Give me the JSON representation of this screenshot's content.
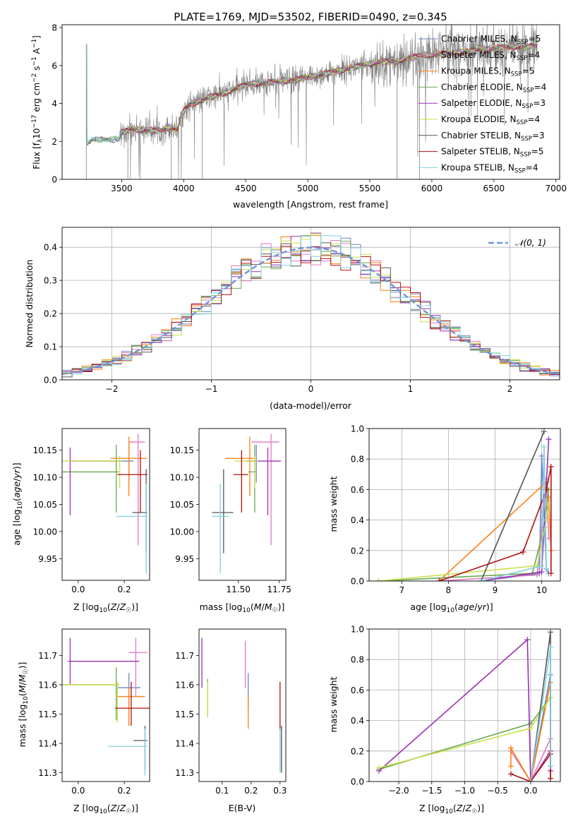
{
  "title": "PLATE=1769, MJD=53502, FIBERID=0490, z=0.345",
  "colors": {
    "Chabrier MILES": "#6f86c6",
    "Salpeter MILES": "#e377c2",
    "Kroupa MILES": "#ff7f0e",
    "Chabrier ELODIE": "#6aa84f",
    "Salpeter ELODIE": "#9b30b5",
    "Kroupa ELODIE": "#c8e04a",
    "Chabrier STELIB": "#555555",
    "Salpeter STELIB": "#b01010",
    "Kroupa STELIB": "#80d0e0",
    "data": "#808080",
    "normal": "#6f95d8"
  },
  "panels": {
    "spectrum": {
      "ylabel": "Flux [f_λ 10^-17 erg cm^-2 s^-1 A^-1]",
      "xlabel": "wavelength [Angstrom, rest frame]",
      "xticks": [
        "3500",
        "4000",
        "4500",
        "5000",
        "5500",
        "6000",
        "6500",
        "7000"
      ],
      "yticks": [
        "0",
        "2",
        "4",
        "6",
        "8"
      ],
      "legend": [
        {
          "label": "Chabrier MILES, N_SSP=5",
          "key": "Chabrier MILES"
        },
        {
          "label": "Salpeter MILES, N_SSP=4",
          "key": "Salpeter MILES"
        },
        {
          "label": "Kroupa MILES, N_SSP=5",
          "key": "Kroupa MILES"
        },
        {
          "label": "Chabrier ELODIE, N_SSP=4",
          "key": "Chabrier ELODIE"
        },
        {
          "label": "Salpeter ELODIE, N_SSP=3",
          "key": "Salpeter ELODIE"
        },
        {
          "label": "Kroupa ELODIE, N_SSP=4",
          "key": "Kroupa ELODIE"
        },
        {
          "label": "Chabrier STELIB, N_SSP=3",
          "key": "Chabrier STELIB"
        },
        {
          "label": "Salpeter STELIB, N_SSP=5",
          "key": "Salpeter STELIB"
        },
        {
          "label": "Kroupa STELIB, N_SSP=4",
          "key": "Kroupa STELIB"
        }
      ]
    },
    "residuals": {
      "ylabel": "Normed distribution",
      "xlabel": "(data-model)/error",
      "xticks": [
        "−2",
        "−1",
        "0",
        "1",
        "2"
      ],
      "yticks": [
        "0.0",
        "0.1",
        "0.2",
        "0.3",
        "0.4"
      ],
      "legend": "𝒩(0, 1)"
    },
    "age_Z": {
      "ylabel": "age  [log10(age/yr)]",
      "xlabel": "Z [log10(Z/Z☉)]",
      "xticks": [
        "0.0",
        "0.2"
      ],
      "yticks": [
        "9.95",
        "10.00",
        "10.05",
        "10.10",
        "10.15"
      ]
    },
    "age_mass": {
      "xlabel": "mass [log10(M/M☉)]",
      "xticks": [
        "11.50",
        "11.75"
      ],
      "yticks": [
        "9.95",
        "10.00",
        "10.05",
        "10.10",
        "10.15"
      ]
    },
    "mw_age": {
      "ylabel": "mass weight",
      "xlabel": "age  [log10(age/yr)]",
      "xticks": [
        "7",
        "8",
        "9",
        "10"
      ],
      "yticks": [
        "0.0",
        "0.2",
        "0.4",
        "0.6",
        "0.8",
        "1.0"
      ]
    },
    "mass_Z": {
      "ylabel": "mass [log10(M/M☉)]",
      "xlabel": "Z [log10(Z/Z☉)]",
      "xticks": [
        "0.0",
        "0.2"
      ],
      "yticks": [
        "11.3",
        "11.4",
        "11.5",
        "11.6",
        "11.7"
      ]
    },
    "mass_ebv": {
      "xlabel": "E(B-V)",
      "xticks": [
        "0.1",
        "0.2",
        "0.3"
      ],
      "yticks": [
        "11.3",
        "11.4",
        "11.5",
        "11.6",
        "11.7"
      ]
    },
    "mw_Z": {
      "ylabel": "mass weight",
      "xlabel": "Z [log10(Z/Z☉)]",
      "xticks": [
        "−2.0",
        "−1.5",
        "−1.0",
        "−0.5",
        "0.0"
      ],
      "yticks": [
        "0.0",
        "0.2",
        "0.4",
        "0.6",
        "0.8",
        "1.0"
      ]
    }
  },
  "chart_data": [
    {
      "type": "line",
      "title": "PLATE=1769, MJD=53502, FIBERID=0490, z=0.345",
      "xlabel": "wavelength [Angstrom, rest frame]",
      "ylabel": "Flux [f_λ 10^-17 erg cm^-2 s^-1 A^-1]",
      "xlim": [
        3020,
        7030
      ],
      "ylim": [
        0,
        8.15
      ],
      "grid": false,
      "legend_position": "top-right",
      "continuum_anchors": {
        "x": [
          3220,
          3270,
          3480,
          3500,
          3600,
          3700,
          3800,
          3900,
          3950,
          3990,
          4050,
          4200,
          4400,
          4500,
          4700,
          4900,
          5100,
          5200,
          5400,
          5600,
          5700,
          5900,
          6100,
          6300,
          6500,
          6700,
          6850
        ],
        "y": [
          1.9,
          2.1,
          2.1,
          2.45,
          2.65,
          2.6,
          2.55,
          2.75,
          2.6,
          3.5,
          3.95,
          4.3,
          4.7,
          5.0,
          5.1,
          5.25,
          5.5,
          5.65,
          5.95,
          6.2,
          6.2,
          6.5,
          6.6,
          6.75,
          6.9,
          7.0,
          7.0
        ]
      }
    },
    {
      "type": "bar",
      "title": "",
      "xlabel": "(data-model)/error",
      "ylabel": "Normed distribution",
      "xlim": [
        -2.5,
        2.5
      ],
      "ylim": [
        0,
        0.46
      ],
      "grid": true,
      "legend_position": "top-right",
      "bin_width": 0.1,
      "series_note": "9 step histograms approximately following N(0,1)",
      "normal": {
        "name": "𝒩(0, 1)",
        "mean": 0,
        "sigma": 1
      }
    },
    {
      "type": "scatter",
      "xlabel": "Z [log10(Z/Z☉)]",
      "ylabel": "age  [log10(age/yr)]",
      "xlim": [
        -0.07,
        0.31
      ],
      "ylim": [
        9.91,
        10.19
      ],
      "points": [
        {
          "key": "Chabrier MILES",
          "x": 0.22,
          "xerr": [
            0.08,
            0.02
          ],
          "y": 10.13,
          "yerr": [
            0.04,
            0.03
          ]
        },
        {
          "key": "Salpeter MILES",
          "x": 0.26,
          "xerr": [
            0.04,
            0.03
          ],
          "y": 10.165,
          "yerr": [
            0.19,
            0.015
          ]
        },
        {
          "key": "Kroupa MILES",
          "x": 0.22,
          "xerr": [
            0.08,
            0.08
          ],
          "y": 10.135,
          "yerr": [
            0.07,
            0.04
          ]
        },
        {
          "key": "Chabrier ELODIE",
          "x": 0.165,
          "xerr": [
            0.25,
            0.01
          ],
          "y": 10.11,
          "yerr": [
            0.075,
            0.05
          ]
        },
        {
          "key": "Salpeter ELODIE",
          "x": -0.035,
          "xerr": [
            0.005,
            0.22
          ],
          "y": 10.13,
          "yerr": [
            0.1,
            0.025
          ]
        },
        {
          "key": "Kroupa ELODIE",
          "x": 0.18,
          "xerr": [
            0.28,
            0.01
          ],
          "y": 10.13,
          "yerr": [
            0.05,
            0.01
          ]
        },
        {
          "key": "Chabrier STELIB",
          "x": 0.295,
          "xerr": [
            0.06,
            0.005
          ],
          "y": 10.035,
          "yerr": [
            0.075,
            0.08
          ]
        },
        {
          "key": "Salpeter STELIB",
          "x": 0.27,
          "xerr": [
            0.1,
            0.03
          ],
          "y": 10.105,
          "yerr": [
            0.07,
            0.045
          ]
        },
        {
          "key": "Kroupa STELIB",
          "x": 0.295,
          "xerr": [
            0.13,
            0.005
          ],
          "y": 10.028,
          "yerr": [
            0.105,
            0.06
          ]
        }
      ]
    },
    {
      "type": "scatter",
      "xlabel": "mass [log10(M/M☉)]",
      "ylabel": "",
      "xlim": [
        11.26,
        11.79
      ],
      "ylim": [
        9.91,
        10.19
      ],
      "points": [
        {
          "key": "Chabrier MILES",
          "x": 11.61,
          "xerr": [
            0.07,
            0.01
          ],
          "y": 10.13,
          "yerr": [
            0.04,
            0.03
          ]
        },
        {
          "key": "Salpeter MILES",
          "x": 11.7,
          "xerr": [
            0.12,
            0.05
          ],
          "y": 10.165,
          "yerr": [
            0.19,
            0.015
          ]
        },
        {
          "key": "Kroupa MILES",
          "x": 11.57,
          "xerr": [
            0.15,
            0.03
          ],
          "y": 10.135,
          "yerr": [
            0.07,
            0.04
          ]
        },
        {
          "key": "Chabrier ELODIE",
          "x": 11.6,
          "xerr": [
            0.04,
            0.01
          ],
          "y": 10.11,
          "yerr": [
            0.075,
            0.05
          ]
        },
        {
          "key": "Salpeter ELODIE",
          "x": 11.68,
          "xerr": [
            0.13,
            0.08
          ],
          "y": 10.13,
          "yerr": [
            0.1,
            0.025
          ]
        },
        {
          "key": "Kroupa ELODIE",
          "x": 11.6,
          "xerr": [
            0.12,
            0.02
          ],
          "y": 10.13,
          "yerr": [
            0.05,
            0.01
          ]
        },
        {
          "key": "Chabrier STELIB",
          "x": 11.41,
          "xerr": [
            0.07,
            0.06
          ],
          "y": 10.035,
          "yerr": [
            0.075,
            0.08
          ]
        },
        {
          "key": "Salpeter STELIB",
          "x": 11.52,
          "xerr": [
            0.05,
            0.04
          ],
          "y": 10.105,
          "yerr": [
            0.07,
            0.045
          ]
        },
        {
          "key": "Kroupa STELIB",
          "x": 11.39,
          "xerr": [
            0.05,
            0.05
          ],
          "y": 10.028,
          "yerr": [
            0.105,
            0.06
          ]
        }
      ]
    },
    {
      "type": "line",
      "xlabel": "age  [log10(age/yr)]",
      "ylabel": "mass weight",
      "xlim": [
        6.3,
        10.4
      ],
      "ylim": [
        0,
        1.0
      ],
      "grid": true,
      "series": [
        {
          "key": "Chabrier MILES",
          "x": [
            8.7,
            9.95,
            10.0,
            10.1,
            10.15
          ],
          "y": [
            0.0,
            0.05,
            0.82,
            0.08,
            0.05
          ]
        },
        {
          "key": "Salpeter MILES",
          "x": [
            7.8,
            9.9,
            10.1,
            10.15
          ],
          "y": [
            0.0,
            0.04,
            0.67,
            0.28
          ]
        },
        {
          "key": "Kroupa MILES",
          "x": [
            7.8,
            10.1,
            10.15,
            10.2
          ],
          "y": [
            0.0,
            0.65,
            0.55,
            0.2
          ]
        },
        {
          "key": "Chabrier ELODIE",
          "x": [
            6.5,
            9.8,
            10.05,
            10.15
          ],
          "y": [
            0.0,
            0.05,
            0.35,
            0.6
          ]
        },
        {
          "key": "Salpeter ELODIE",
          "x": [
            8.7,
            10.0,
            10.15
          ],
          "y": [
            0.0,
            0.06,
            0.93
          ]
        },
        {
          "key": "Kroupa ELODIE",
          "x": [
            6.5,
            9.9,
            10.1,
            10.15
          ],
          "y": [
            0.0,
            0.1,
            0.4,
            0.5
          ]
        },
        {
          "key": "Chabrier STELIB",
          "x": [
            8.7,
            10.05
          ],
          "y": [
            0.0,
            0.98
          ]
        },
        {
          "key": "Salpeter STELIB",
          "x": [
            7.8,
            9.6,
            10.1,
            10.2,
            10.2
          ],
          "y": [
            0.0,
            0.19,
            0.6,
            0.75,
            0.05
          ]
        },
        {
          "key": "Kroupa STELIB",
          "x": [
            8.7,
            10.0,
            10.05,
            10.1
          ],
          "y": [
            0.0,
            0.1,
            0.88,
            0.08
          ]
        }
      ]
    },
    {
      "type": "scatter",
      "xlabel": "Z [log10(Z/Z☉)]",
      "ylabel": "mass [log10(M/M☉)]",
      "xlim": [
        -0.07,
        0.31
      ],
      "ylim": [
        11.27,
        11.79
      ],
      "points": [
        {
          "key": "Chabrier MILES",
          "x": 0.22,
          "xerr": [
            0.05,
            0.05
          ],
          "y": 11.59,
          "yerr": [
            0.07,
            0.05
          ]
        },
        {
          "key": "Salpeter MILES",
          "x": 0.25,
          "xerr": [
            0.03,
            0.05
          ],
          "y": 11.71,
          "yerr": [
            0.15,
            0.05
          ]
        },
        {
          "key": "Kroupa MILES",
          "x": 0.22,
          "xerr": [
            0.05,
            0.07
          ],
          "y": 11.56,
          "yerr": [
            0.1,
            0.03
          ]
        },
        {
          "key": "Chabrier ELODIE",
          "x": 0.165,
          "xerr": [
            0.25,
            0.01
          ],
          "y": 11.6,
          "yerr": [
            0.12,
            0.06
          ]
        },
        {
          "key": "Salpeter ELODIE",
          "x": -0.035,
          "xerr": [
            0.01,
            0.3
          ],
          "y": 11.68,
          "yerr": [
            0.08,
            0.08
          ]
        },
        {
          "key": "Kroupa ELODIE",
          "x": 0.17,
          "xerr": [
            0.25,
            0.01
          ],
          "y": 11.6,
          "yerr": [
            0.13,
            0.01
          ]
        },
        {
          "key": "Chabrier STELIB",
          "x": 0.29,
          "xerr": [
            0.05,
            0.01
          ],
          "y": 11.41,
          "yerr": [
            0.1,
            0.05
          ]
        },
        {
          "key": "Salpeter STELIB",
          "x": 0.23,
          "xerr": [
            0.07,
            0.08
          ],
          "y": 11.52,
          "yerr": [
            0.06,
            0.09
          ]
        },
        {
          "key": "Kroupa STELIB",
          "x": 0.29,
          "xerr": [
            0.16,
            0.01
          ],
          "y": 11.39,
          "yerr": [
            0.1,
            0.06
          ]
        }
      ]
    },
    {
      "type": "scatter",
      "xlabel": "E(B-V)",
      "ylabel": "",
      "xlim": [
        0.02,
        0.32
      ],
      "ylim": [
        11.27,
        11.79
      ],
      "points": [
        {
          "key": "Chabrier MILES",
          "x": 0.19,
          "y": 11.59,
          "yerr": [
            0.07,
            0.05
          ]
        },
        {
          "key": "Salpeter MILES",
          "x": 0.18,
          "y": 11.67,
          "yerr": [
            0.08,
            0.08
          ]
        },
        {
          "key": "Kroupa MILES",
          "x": 0.19,
          "y": 11.53,
          "yerr": [
            0.08,
            0.03
          ]
        },
        {
          "key": "Chabrier ELODIE",
          "x": 0.05,
          "y": 11.57,
          "yerr": [
            0.08,
            0.05
          ]
        },
        {
          "key": "Salpeter ELODIE",
          "x": 0.03,
          "y": 11.68,
          "yerr": [
            0.09,
            0.08
          ]
        },
        {
          "key": "Kroupa ELODIE",
          "x": 0.05,
          "y": 11.57,
          "yerr": [
            0.08,
            0.04
          ]
        },
        {
          "key": "Chabrier STELIB",
          "x": 0.305,
          "y": 11.38,
          "yerr": [
            0.08,
            0.08
          ]
        },
        {
          "key": "Salpeter STELIB",
          "x": 0.3,
          "y": 11.53,
          "yerr": [
            0.08,
            0.08
          ]
        },
        {
          "key": "Kroupa STELIB",
          "x": 0.3,
          "y": 11.37,
          "yerr": [
            0.07,
            0.08
          ]
        }
      ]
    },
    {
      "type": "line",
      "xlabel": "Z [log10(Z/Z☉)]",
      "ylabel": "mass weight",
      "xlim": [
        -2.45,
        0.45
      ],
      "ylim": [
        0,
        1.0
      ],
      "grid": true,
      "series": [
        {
          "key": "Chabrier MILES",
          "x": [
            0.0,
            0.3,
            0.3
          ],
          "y": [
            0.0,
            0.7,
            0.1
          ]
        },
        {
          "key": "Salpeter MILES",
          "x": [
            -0.3,
            0.0,
            0.3,
            0.3
          ],
          "y": [
            0.2,
            0.0,
            0.28,
            0.07
          ]
        },
        {
          "key": "Kroupa MILES",
          "x": [
            -0.3,
            -0.3,
            0.0,
            0.3,
            0.3
          ],
          "y": [
            0.1,
            0.22,
            0.0,
            0.65,
            0.2
          ]
        },
        {
          "key": "Chabrier ELODIE",
          "x": [
            -2.3,
            0.0,
            0.3
          ],
          "y": [
            0.08,
            0.38,
            0.55
          ]
        },
        {
          "key": "Salpeter ELODIE",
          "x": [
            -2.3,
            -0.05,
            0.0,
            0.3,
            0.3
          ],
          "y": [
            0.07,
            0.93,
            0.0,
            0.2,
            0.07
          ]
        },
        {
          "key": "Kroupa ELODIE",
          "x": [
            -2.3,
            0.0,
            0.3
          ],
          "y": [
            0.09,
            0.35,
            0.55
          ]
        },
        {
          "key": "Chabrier STELIB",
          "x": [
            0.0,
            0.3,
            0.3
          ],
          "y": [
            0.0,
            0.98,
            0.02
          ]
        },
        {
          "key": "Salpeter STELIB",
          "x": [
            -0.3,
            0.0,
            0.3,
            0.3
          ],
          "y": [
            0.05,
            0.0,
            0.18,
            0.02
          ]
        },
        {
          "key": "Kroupa STELIB",
          "x": [
            0.0,
            0.3,
            0.3
          ],
          "y": [
            0.0,
            0.88,
            0.1
          ]
        }
      ]
    }
  ]
}
